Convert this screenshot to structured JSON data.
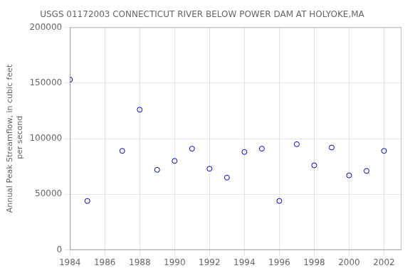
{
  "chart_data": {
    "type": "scatter",
    "title": "USGS 01172003 CONNECTICUT RIVER BELOW POWER DAM AT HOLYOKE,MA",
    "ylabel": "Annual Peak Streamflow, in cubic feet\n per second",
    "x": [
      1984,
      1985,
      1987,
      1988,
      1989,
      1990,
      1991,
      1992,
      1993,
      1994,
      1995,
      1996,
      1997,
      1998,
      1999,
      2000,
      2001,
      2002
    ],
    "values": [
      153000,
      44000,
      89000,
      126000,
      72000,
      80000,
      91000,
      73000,
      65000,
      88000,
      91000,
      44000,
      95000,
      76000,
      92000,
      67000,
      71000,
      89000
    ],
    "color": "#0000bb",
    "marker": "circle",
    "xlim": [
      1984,
      2003
    ],
    "ylim": [
      0,
      200000
    ],
    "xticks": [
      1984,
      1986,
      1988,
      1990,
      1992,
      1994,
      1996,
      1998,
      2000,
      2002
    ],
    "yticks": [
      0,
      50000,
      100000,
      150000,
      200000
    ],
    "grid": true
  }
}
